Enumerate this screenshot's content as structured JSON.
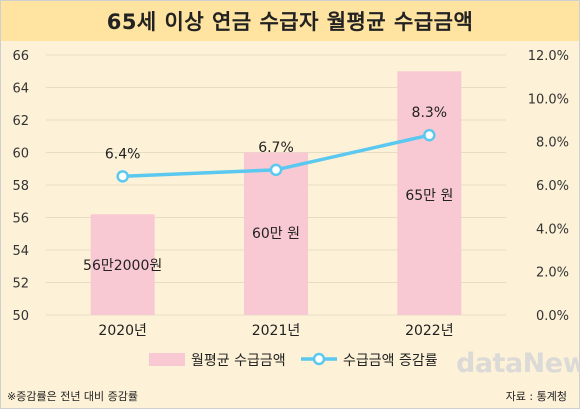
{
  "title": "65세 이상 연금 수급자 월평균 수급금액",
  "footnote": "※증감률은 전년 대비 증감률",
  "source": "자료 : 통계청",
  "watermark": "dataNews",
  "colors": {
    "bar": "#f9c9d3",
    "line": "#5bc8f0",
    "title_band": "#ffe3a0",
    "background": "#fdf2d8"
  },
  "chart_data": {
    "type": "bar+line",
    "categories": [
      "2020년",
      "2021년",
      "2022년"
    ],
    "y_left": {
      "min": 50,
      "max": 66,
      "step": 2,
      "ticks": [
        "50",
        "52",
        "54",
        "56",
        "58",
        "60",
        "62",
        "64",
        "66"
      ]
    },
    "y_right": {
      "min": 0,
      "max": 12,
      "step": 2,
      "ticks": [
        "0.0%",
        "2.0%",
        "4.0%",
        "6.0%",
        "8.0%",
        "10.0%",
        "12.0%"
      ]
    },
    "series": [
      {
        "name": "월평균 수급금액",
        "kind": "bar",
        "axis": "left",
        "values": [
          56.2,
          60,
          65
        ],
        "labels": [
          "56만2000원",
          "60만 원",
          "65만 원"
        ]
      },
      {
        "name": "수급금액 증감률",
        "kind": "line",
        "axis": "right",
        "values": [
          6.4,
          6.7,
          8.3
        ],
        "labels": [
          "6.4%",
          "6.7%",
          "8.3%"
        ]
      }
    ],
    "grid": "horizontal",
    "legend": "bottom"
  }
}
